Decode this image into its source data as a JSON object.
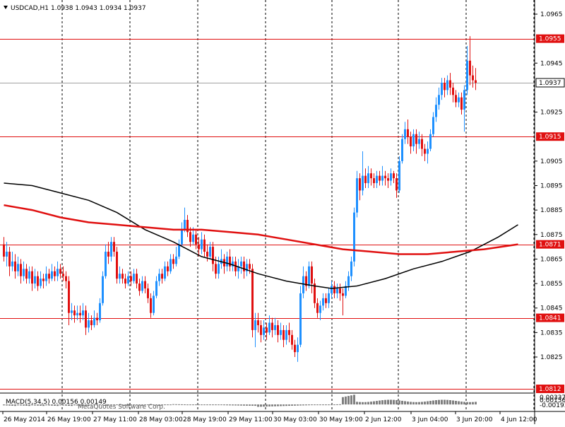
{
  "header": {
    "symbol_label": "USDCAD,H1",
    "ohlc_label": "1.0938 1.0943 1.0934 1.0937"
  },
  "macd_label": "MACD(5,34,5) 0.00156 0.00149",
  "watermark": "MetaQuotes Software Corp.",
  "colors": {
    "background": "#ffffff",
    "bull": "#1e90ff",
    "bear": "#e01010",
    "level_line": "#e01010",
    "ma_fast": "#e01010",
    "ma_slow": "#000000",
    "current_price_line": "#a0a0a0",
    "macd_bars": "#808080"
  },
  "chart_data": [
    {
      "type": "candlestick",
      "title": "USDCAD,H1",
      "ylim": [
        1.0812,
        1.097
      ],
      "y_ticks": [
        "1.0965",
        "1.0945",
        "1.0925",
        "1.0905",
        "1.0895",
        "1.0885",
        "1.0875",
        "1.0865",
        "1.0855",
        "1.0845",
        "1.0835",
        "1.0825"
      ],
      "x_labels": [
        "26 May 2014",
        "26 May 19:00",
        "27 May 11:00",
        "28 May 03:00",
        "28 May 19:00",
        "29 May 11:00",
        "30 May 03:00",
        "30 May 19:00",
        "2 Jun 12:00",
        "3 Jun 04:00",
        "3 Jun 20:00",
        "4 Jun 12:00"
      ],
      "grid": true,
      "current_price": "1.0937",
      "levels": [
        "1.0955",
        "1.0915",
        "1.0871",
        "1.0841",
        "1.0812"
      ],
      "moving_averages": [
        {
          "color": "ma_slow",
          "points": [
            [
              0,
              1.0896
            ],
            [
              10,
              1.0895
            ],
            [
              20,
              1.0892
            ],
            [
              30,
              1.0889
            ],
            [
              40,
              1.0884
            ],
            [
              50,
              1.0877
            ],
            [
              60,
              1.0872
            ],
            [
              70,
              1.0866
            ],
            [
              80,
              1.0863
            ],
            [
              90,
              1.0859
            ],
            [
              100,
              1.0856
            ],
            [
              110,
              1.0854
            ],
            [
              116,
              1.0853
            ],
            [
              125,
              1.0854
            ],
            [
              135,
              1.0857
            ],
            [
              145,
              1.0861
            ],
            [
              155,
              1.0864
            ],
            [
              165,
              1.0868
            ],
            [
              175,
              1.0874
            ],
            [
              182,
              1.0879
            ]
          ]
        },
        {
          "color": "ma_fast",
          "points": [
            [
              0,
              1.0887
            ],
            [
              10,
              1.0885
            ],
            [
              20,
              1.0882
            ],
            [
              30,
              1.088
            ],
            [
              40,
              1.0879
            ],
            [
              50,
              1.0878
            ],
            [
              60,
              1.0877
            ],
            [
              70,
              1.0877
            ],
            [
              80,
              1.0876
            ],
            [
              90,
              1.0875
            ],
            [
              100,
              1.0873
            ],
            [
              110,
              1.0871
            ],
            [
              120,
              1.0869
            ],
            [
              130,
              1.0868
            ],
            [
              140,
              1.0867
            ],
            [
              150,
              1.0867
            ],
            [
              160,
              1.0868
            ],
            [
              170,
              1.0869
            ],
            [
              182,
              1.0871
            ]
          ]
        }
      ],
      "candles": [
        [
          1.0871,
          1.0866,
          1.0874,
          1.0864
        ],
        [
          1.0866,
          1.0868,
          1.0872,
          1.0862
        ],
        [
          1.0868,
          1.0862,
          1.087,
          1.0858
        ],
        [
          1.0862,
          1.0864,
          1.0868,
          1.086
        ],
        [
          1.0864,
          1.086,
          1.0867,
          1.0857
        ],
        [
          1.086,
          1.0863,
          1.0866,
          1.0858
        ],
        [
          1.0863,
          1.0858,
          1.0865,
          1.0855
        ],
        [
          1.0858,
          1.0861,
          1.0864,
          1.0856
        ],
        [
          1.0861,
          1.0857,
          1.0863,
          1.0855
        ],
        [
          1.0857,
          1.086,
          1.0862,
          1.0855
        ],
        [
          1.086,
          1.0855,
          1.0862,
          1.0852
        ],
        [
          1.0855,
          1.0858,
          1.0861,
          1.0853
        ],
        [
          1.0858,
          1.0854,
          1.086,
          1.0852
        ],
        [
          1.0854,
          1.0857,
          1.086,
          1.0853
        ],
        [
          1.0857,
          1.0856,
          1.0859,
          1.0853
        ],
        [
          1.0856,
          1.0859,
          1.0862,
          1.0854
        ],
        [
          1.0859,
          1.0857,
          1.0861,
          1.0855
        ],
        [
          1.0857,
          1.086,
          1.0863,
          1.0856
        ],
        [
          1.086,
          1.0858,
          1.0862,
          1.0856
        ],
        [
          1.0858,
          1.0861,
          1.0864,
          1.0856
        ],
        [
          1.0861,
          1.0859,
          1.0863,
          1.0857
        ],
        [
          1.0859,
          1.0858,
          1.0862,
          1.0856
        ],
        [
          1.0858,
          1.0856,
          1.086,
          1.0853
        ],
        [
          1.0856,
          1.0843,
          1.0858,
          1.0838
        ],
        [
          1.0843,
          1.0844,
          1.0847,
          1.084
        ],
        [
          1.0844,
          1.0842,
          1.0846,
          1.0839
        ],
        [
          1.0842,
          1.0843,
          1.0846,
          1.084
        ],
        [
          1.0843,
          1.0842,
          1.0846,
          1.0839
        ],
        [
          1.0842,
          1.0844,
          1.0847,
          1.084
        ],
        [
          1.0844,
          1.0837,
          1.0846,
          1.0834
        ],
        [
          1.0837,
          1.084,
          1.0843,
          1.0835
        ],
        [
          1.084,
          1.0838,
          1.0842,
          1.0836
        ],
        [
          1.0838,
          1.0841,
          1.0844,
          1.0837
        ],
        [
          1.0841,
          1.084,
          1.0843,
          1.0838
        ],
        [
          1.084,
          1.0847,
          1.0849,
          1.0839
        ],
        [
          1.0847,
          1.0858,
          1.086,
          1.0846
        ],
        [
          1.0858,
          1.0868,
          1.0871,
          1.0857
        ],
        [
          1.0868,
          1.0866,
          1.0872,
          1.0863
        ],
        [
          1.0866,
          1.0872,
          1.0874,
          1.0864
        ],
        [
          1.0872,
          1.0868,
          1.0874,
          1.0866
        ],
        [
          1.0868,
          1.0857,
          1.087,
          1.0855
        ],
        [
          1.0857,
          1.0859,
          1.0862,
          1.0855
        ],
        [
          1.0859,
          1.0857,
          1.0861,
          1.0855
        ],
        [
          1.0857,
          1.0855,
          1.0859,
          1.0853
        ],
        [
          1.0855,
          1.0858,
          1.086,
          1.0854
        ],
        [
          1.0858,
          1.0856,
          1.086,
          1.0854
        ],
        [
          1.0856,
          1.0859,
          1.0861,
          1.0855
        ],
        [
          1.0859,
          1.0855,
          1.0861,
          1.0853
        ],
        [
          1.0855,
          1.0852,
          1.0857,
          1.085
        ],
        [
          1.0852,
          1.0856,
          1.0858,
          1.0851
        ],
        [
          1.0856,
          1.0853,
          1.0858,
          1.0851
        ],
        [
          1.0853,
          1.0849,
          1.0855,
          1.0847
        ],
        [
          1.0849,
          1.0843,
          1.0851,
          1.0841
        ],
        [
          1.0843,
          1.085,
          1.0852,
          1.0842
        ],
        [
          1.085,
          1.0856,
          1.0858,
          1.0849
        ],
        [
          1.0856,
          1.0859,
          1.0861,
          1.0854
        ],
        [
          1.0859,
          1.0857,
          1.0861,
          1.0855
        ],
        [
          1.0857,
          1.0862,
          1.0864,
          1.0856
        ],
        [
          1.0862,
          1.086,
          1.0864,
          1.0858
        ],
        [
          1.086,
          1.0865,
          1.0867,
          1.0859
        ],
        [
          1.0865,
          1.0863,
          1.0867,
          1.0861
        ],
        [
          1.0863,
          1.0866,
          1.087,
          1.0862
        ],
        [
          1.0866,
          1.0871,
          1.0873,
          1.0865
        ],
        [
          1.0871,
          1.0877,
          1.088,
          1.087
        ],
        [
          1.0877,
          1.0881,
          1.0886,
          1.0876
        ],
        [
          1.0881,
          1.0876,
          1.0883,
          1.0874
        ],
        [
          1.0876,
          1.0872,
          1.0878,
          1.087
        ],
        [
          1.0872,
          1.0875,
          1.0878,
          1.0871
        ],
        [
          1.0875,
          1.0871,
          1.0877,
          1.0869
        ],
        [
          1.0871,
          1.0869,
          1.0874,
          1.0866
        ],
        [
          1.0869,
          1.0873,
          1.0876,
          1.0867
        ],
        [
          1.0873,
          1.0868,
          1.0875,
          1.0866
        ],
        [
          1.0868,
          1.0866,
          1.0871,
          1.0864
        ],
        [
          1.0866,
          1.087,
          1.0872,
          1.0865
        ],
        [
          1.087,
          1.0863,
          1.0872,
          1.086
        ],
        [
          1.0863,
          1.0859,
          1.0866,
          1.0857
        ],
        [
          1.0859,
          1.0863,
          1.0866,
          1.0857
        ],
        [
          1.0863,
          1.0865,
          1.0869,
          1.0861
        ],
        [
          1.0865,
          1.0862,
          1.0867,
          1.0859
        ],
        [
          1.0862,
          1.0866,
          1.0868,
          1.086
        ],
        [
          1.0866,
          1.0862,
          1.0869,
          1.086
        ],
        [
          1.0862,
          1.0864,
          1.0866,
          1.086
        ],
        [
          1.0864,
          1.086,
          1.0866,
          1.0858
        ],
        [
          1.086,
          1.0862,
          1.0865,
          1.0857
        ],
        [
          1.0862,
          1.0864,
          1.0866,
          1.0859
        ],
        [
          1.0864,
          1.086,
          1.0866,
          1.0857
        ],
        [
          1.086,
          1.0863,
          1.0865,
          1.0858
        ],
        [
          1.0863,
          1.0861,
          1.0865,
          1.0859
        ],
        [
          1.0861,
          1.0836,
          1.0863,
          1.0833
        ],
        [
          1.0836,
          1.084,
          1.0843,
          1.0829
        ],
        [
          1.084,
          1.0838,
          1.0843,
          1.0835
        ],
        [
          1.0838,
          1.0834,
          1.084,
          1.0831
        ],
        [
          1.0834,
          1.0837,
          1.084,
          1.0832
        ],
        [
          1.0837,
          1.0835,
          1.0839,
          1.0832
        ],
        [
          1.0835,
          1.0839,
          1.0842,
          1.0834
        ],
        [
          1.0839,
          1.0836,
          1.0841,
          1.0833
        ],
        [
          1.0836,
          1.0838,
          1.0841,
          1.0834
        ],
        [
          1.0838,
          1.0834,
          1.084,
          1.0831
        ],
        [
          1.0834,
          1.0836,
          1.0839,
          1.0832
        ],
        [
          1.0836,
          1.0832,
          1.0838,
          1.0829
        ],
        [
          1.0832,
          1.0836,
          1.0838,
          1.083
        ],
        [
          1.0836,
          1.0834,
          1.0839,
          1.0831
        ],
        [
          1.0834,
          1.083,
          1.0836,
          1.0828
        ],
        [
          1.083,
          1.0827,
          1.0832,
          1.0825
        ],
        [
          1.0827,
          1.083,
          1.0833,
          1.0823
        ],
        [
          1.083,
          1.0851,
          1.0854,
          1.0829
        ],
        [
          1.0851,
          1.0858,
          1.0862,
          1.0849
        ],
        [
          1.0858,
          1.0854,
          1.086,
          1.0852
        ],
        [
          1.0854,
          1.0862,
          1.0864,
          1.0853
        ],
        [
          1.0862,
          1.0855,
          1.0864,
          1.0851
        ],
        [
          1.0855,
          1.0847,
          1.0857,
          1.0845
        ],
        [
          1.0847,
          1.0843,
          1.0849,
          1.0841
        ],
        [
          1.0843,
          1.0846,
          1.0848,
          1.084
        ],
        [
          1.0846,
          1.0849,
          1.0851,
          1.0844
        ],
        [
          1.0849,
          1.0847,
          1.0851,
          1.0845
        ],
        [
          1.0847,
          1.0851,
          1.0853,
          1.0845
        ],
        [
          1.0851,
          1.0854,
          1.0856,
          1.0849
        ],
        [
          1.0854,
          1.0851,
          1.0856,
          1.0849
        ],
        [
          1.0851,
          1.0853,
          1.0855,
          1.0849
        ],
        [
          1.0853,
          1.0851,
          1.0855,
          1.0848
        ],
        [
          1.0851,
          1.085,
          1.0853,
          1.0842
        ],
        [
          1.085,
          1.0854,
          1.0856,
          1.0849
        ],
        [
          1.0854,
          1.0858,
          1.086,
          1.0852
        ],
        [
          1.0858,
          1.0864,
          1.0866,
          1.0856
        ],
        [
          1.0864,
          1.0884,
          1.0886,
          1.0862
        ],
        [
          1.0884,
          1.0898,
          1.0901,
          1.0882
        ],
        [
          1.0898,
          1.0893,
          1.09,
          1.0889
        ],
        [
          1.0893,
          1.0899,
          1.0909,
          1.0891
        ],
        [
          1.0899,
          1.0896,
          1.0902,
          1.0894
        ],
        [
          1.0896,
          1.09,
          1.0903,
          1.0894
        ],
        [
          1.09,
          1.0898,
          1.0902,
          1.0895
        ],
        [
          1.0898,
          1.0896,
          1.09,
          1.0894
        ],
        [
          1.0896,
          1.0899,
          1.0901,
          1.0894
        ],
        [
          1.0899,
          1.0897,
          1.0901,
          1.0895
        ],
        [
          1.0897,
          1.0899,
          1.0903,
          1.0895
        ],
        [
          1.0899,
          1.0898,
          1.0901,
          1.0895
        ],
        [
          1.0898,
          1.0897,
          1.09,
          1.0894
        ],
        [
          1.0897,
          1.09,
          1.0902,
          1.0895
        ],
        [
          1.09,
          1.0898,
          1.0901,
          1.0896
        ],
        [
          1.0898,
          1.0893,
          1.09,
          1.089
        ],
        [
          1.0893,
          1.0905,
          1.0907,
          1.0892
        ],
        [
          1.0905,
          1.0914,
          1.0916,
          1.0904
        ],
        [
          1.0914,
          1.0918,
          1.0921,
          1.0912
        ],
        [
          1.0918,
          1.0915,
          1.0922,
          1.0912
        ],
        [
          1.0915,
          1.0911,
          1.0917,
          1.0908
        ],
        [
          1.0911,
          1.0916,
          1.0918,
          1.0909
        ],
        [
          1.0916,
          1.0912,
          1.0918,
          1.0908
        ],
        [
          1.0912,
          1.0914,
          1.0917,
          1.091
        ],
        [
          1.0914,
          1.091,
          1.0916,
          1.0907
        ],
        [
          1.091,
          1.0908,
          1.0912,
          1.0905
        ],
        [
          1.0908,
          1.091,
          1.0913,
          1.0904
        ],
        [
          1.091,
          1.0916,
          1.0918,
          1.0909
        ],
        [
          1.0916,
          1.0923,
          1.0925,
          1.0915
        ],
        [
          1.0923,
          1.0928,
          1.0931,
          1.0921
        ],
        [
          1.0928,
          1.0932,
          1.0935,
          1.0926
        ],
        [
          1.0932,
          1.0937,
          1.0939,
          1.093
        ],
        [
          1.0937,
          1.0934,
          1.0939,
          1.0931
        ],
        [
          1.0934,
          1.0938,
          1.094,
          1.0932
        ],
        [
          1.0938,
          1.0935,
          1.0941,
          1.0932
        ],
        [
          1.0935,
          1.0932,
          1.0937,
          1.0929
        ],
        [
          1.0932,
          1.0929,
          1.0934,
          1.0927
        ],
        [
          1.0929,
          1.0931,
          1.0933,
          1.0927
        ],
        [
          1.0931,
          1.0926,
          1.0933,
          1.0924
        ],
        [
          1.0926,
          1.0934,
          1.0936,
          1.0917
        ],
        [
          1.0934,
          1.0946,
          1.0952,
          1.0932
        ],
        [
          1.0946,
          1.094,
          1.0956,
          1.0936
        ],
        [
          1.094,
          1.0938,
          1.0944,
          1.0935
        ],
        [
          1.0938,
          1.0937,
          1.0943,
          1.0934
        ]
      ],
      "macd": {
        "ylim": [
          -0.0019,
          0.0034
        ],
        "tick_labels": [
          "0.00337",
          "0.00156",
          "-0.00193"
        ]
      }
    }
  ]
}
